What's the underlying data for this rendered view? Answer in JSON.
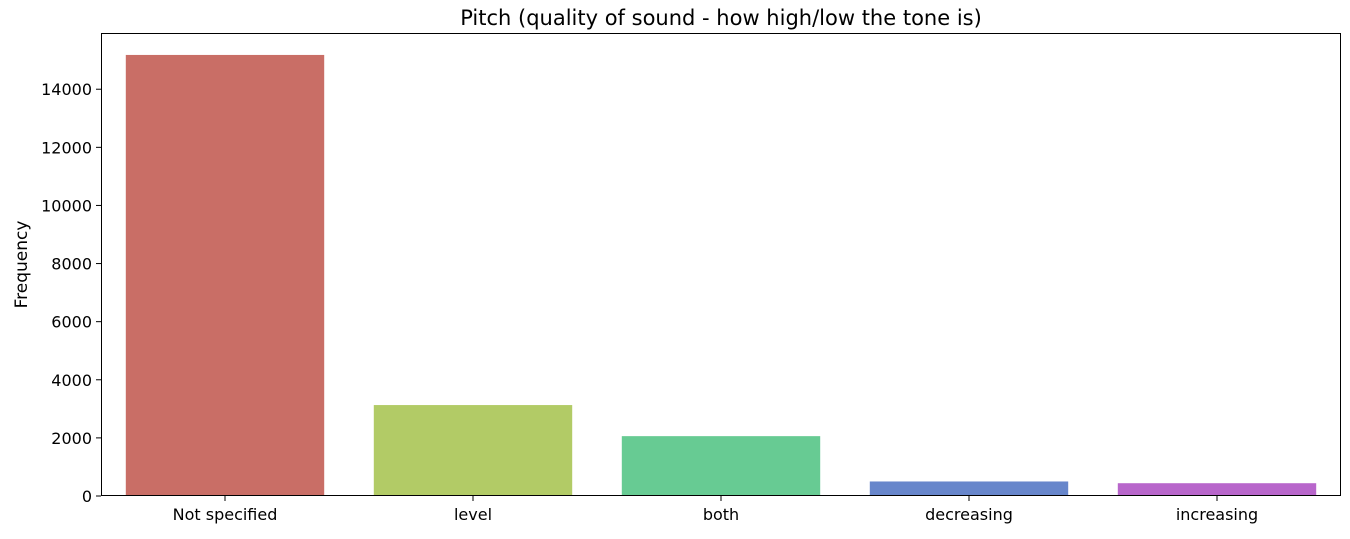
{
  "chart_data": {
    "type": "bar",
    "title": "Pitch (quality of sound - how high/low the tone is)",
    "xlabel": "",
    "ylabel": "Frequency",
    "categories": [
      "Not specified",
      "level",
      "both",
      "decreasing",
      "increasing"
    ],
    "values": [
      15180,
      3130,
      2060,
      500,
      440
    ],
    "colors": [
      "#c96e66",
      "#b2cb66",
      "#67cb93",
      "#6786cb",
      "#b866cb"
    ],
    "ylim": [
      0,
      15935
    ],
    "yticks": [
      0,
      2000,
      4000,
      6000,
      8000,
      10000,
      12000,
      14000
    ],
    "ytick_labels": [
      "0",
      "2000",
      "4000",
      "6000",
      "8000",
      "10000",
      "12000",
      "14000"
    ],
    "grid": false,
    "legend": "none"
  }
}
